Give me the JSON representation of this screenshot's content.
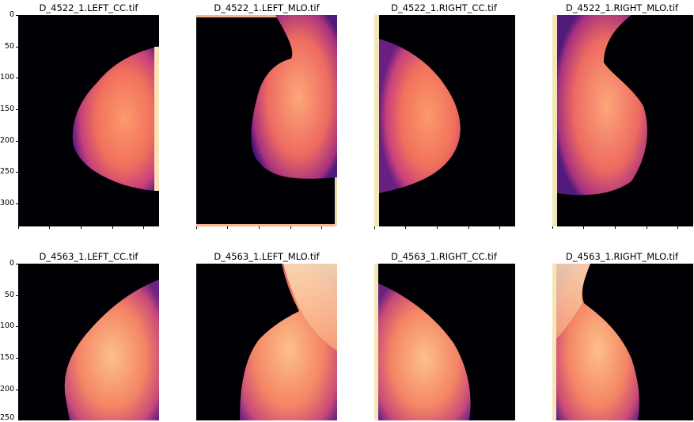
{
  "figure": {
    "row1": {
      "titles": [
        "D_4522_1.LEFT_CC.tif",
        "D_4522_1.LEFT_MLO.tif",
        "D_4522_1.RIGHT_CC.tif",
        "D_4522_1.RIGHT_MLO.tif"
      ],
      "yticks": [
        "0",
        "50",
        "100",
        "150",
        "200",
        "250",
        "300"
      ]
    },
    "row2": {
      "titles": [
        "D_4563_1.LEFT_CC.tif",
        "D_4563_1.LEFT_MLO.tif",
        "D_4563_1.RIGHT_CC.tif",
        "D_4563_1.RIGHT_MLO.tif"
      ],
      "yticks": [
        "0",
        "50",
        "100",
        "150",
        "200",
        "250"
      ]
    },
    "colormap": "magma",
    "background_color": "#000004"
  }
}
